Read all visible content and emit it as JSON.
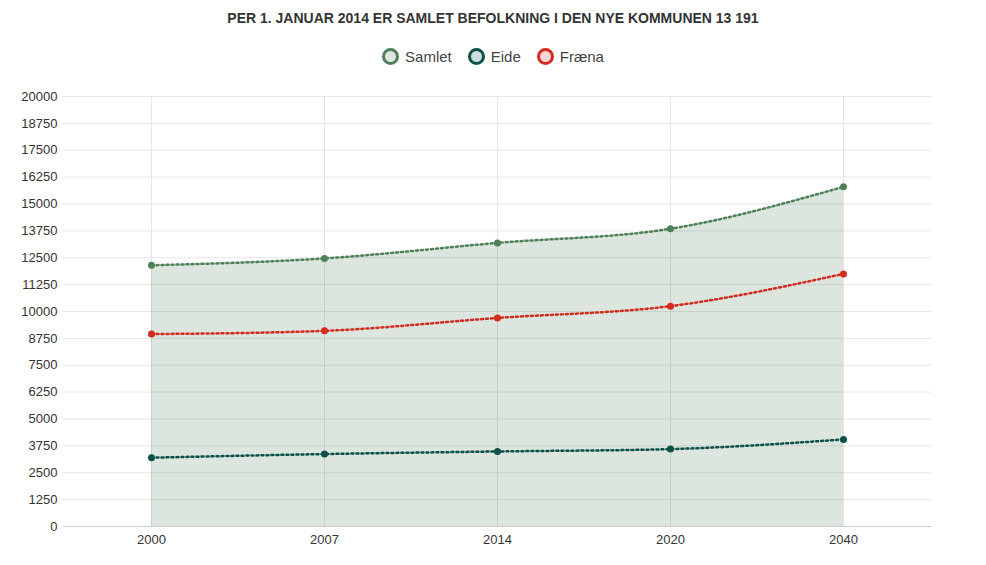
{
  "chart_data": {
    "type": "line",
    "title": "PER 1. JANUAR 2014 ER SAMLET BEFOLKNING I DEN NYE KOMMUNEN 13 191",
    "categories": [
      "2000",
      "2007",
      "2014",
      "2020",
      "2040"
    ],
    "series": [
      {
        "name": "Samlet",
        "color": "#4e8158",
        "type": "area",
        "marker": "circle",
        "line_style": "dotted",
        "values": [
          12150,
          12470,
          13191,
          13850,
          15800
        ]
      },
      {
        "name": "Eide",
        "color": "#0b5149",
        "type": "line",
        "marker": "circle",
        "line_style": "dotted",
        "values": [
          3200,
          3370,
          3490,
          3600,
          4050
        ]
      },
      {
        "name": "Fræna",
        "color": "#d52b1e",
        "type": "line",
        "marker": "circle",
        "line_style": "dotted",
        "values": [
          8950,
          9100,
          9700,
          10250,
          11750
        ]
      }
    ],
    "ylim": [
      0,
      20000
    ],
    "yticks": [
      0,
      1250,
      2500,
      3750,
      5000,
      6250,
      7500,
      8750,
      10000,
      11250,
      12500,
      13750,
      15000,
      16250,
      17500,
      18750,
      20000
    ],
    "grid": true,
    "legend": "top"
  }
}
